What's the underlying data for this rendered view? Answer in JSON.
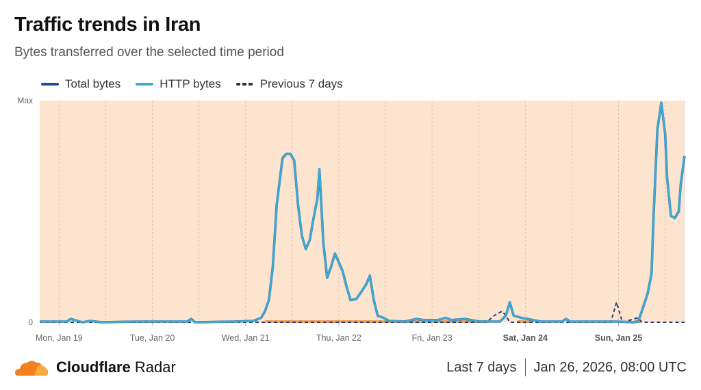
{
  "header": {
    "title": "Traffic trends in Iran",
    "subtitle": "Bytes transferred over the selected time period"
  },
  "footer": {
    "brand_bold": "Cloudflare",
    "brand_light": "Radar",
    "range": "Last 7 days",
    "timestamp": "Jan 26, 2026, 08:00 UTC"
  },
  "colors": {
    "total": "#1d4e9a",
    "http": "#3fa9d0",
    "previous": "#333333",
    "highlight": "#f0a060",
    "plot_bg": "#fde4cf"
  },
  "chart_data": {
    "type": "line",
    "title": "Traffic trends in Iran",
    "ylim": [
      0,
      1
    ],
    "y_ticks": [
      {
        "value": 0,
        "label": "0"
      },
      {
        "value": 1,
        "label": "Max"
      }
    ],
    "x_range": [
      "2026-01-18T19:00",
      "2026-01-25T17:00"
    ],
    "x_ticks": [
      {
        "t": "2026-01-19T00:00",
        "label": "Mon, Jan 19",
        "bold": false
      },
      {
        "t": "2026-01-20T00:00",
        "label": "Tue, Jan 20",
        "bold": false
      },
      {
        "t": "2026-01-21T00:00",
        "label": "Wed, Jan 21",
        "bold": false
      },
      {
        "t": "2026-01-22T00:00",
        "label": "Thu, Jan 22",
        "bold": false
      },
      {
        "t": "2026-01-23T00:00",
        "label": "Fri, Jan 23",
        "bold": false
      },
      {
        "t": "2026-01-24T00:00",
        "label": "Sat, Jan 24",
        "bold": true
      },
      {
        "t": "2026-01-25T00:00",
        "label": "Sun, Jan 25",
        "bold": true
      }
    ],
    "grid": "vertical dashed every 12h",
    "legend": "top-left",
    "series": [
      {
        "name": "Total bytes",
        "style": "solid",
        "color": "#1d4e9a",
        "points": [
          [
            "2026-01-18T19:00",
            0.003
          ],
          [
            "2026-01-19T02:00",
            0.003
          ],
          [
            "2026-01-19T03:00",
            0.015
          ],
          [
            "2026-01-19T04:00",
            0.01
          ],
          [
            "2026-01-19T06:00",
            0.0
          ],
          [
            "2026-01-19T08:00",
            0.006
          ],
          [
            "2026-01-19T11:00",
            0.0
          ],
          [
            "2026-01-19T20:00",
            0.003
          ],
          [
            "2026-01-20T09:00",
            0.003
          ],
          [
            "2026-01-20T10:00",
            0.015
          ],
          [
            "2026-01-20T11:00",
            0.0
          ],
          [
            "2026-01-20T21:00",
            0.003
          ],
          [
            "2026-01-21T02:00",
            0.006
          ],
          [
            "2026-01-21T04:00",
            0.02
          ],
          [
            "2026-01-21T05:00",
            0.05
          ],
          [
            "2026-01-21T06:00",
            0.1
          ],
          [
            "2026-01-21T07:00",
            0.25
          ],
          [
            "2026-01-21T08:00",
            0.53
          ],
          [
            "2026-01-21T09:30",
            0.74
          ],
          [
            "2026-01-21T10:30",
            0.76
          ],
          [
            "2026-01-21T11:30",
            0.76
          ],
          [
            "2026-01-21T12:30",
            0.73
          ],
          [
            "2026-01-21T13:30",
            0.53
          ],
          [
            "2026-01-21T14:30",
            0.39
          ],
          [
            "2026-01-21T15:30",
            0.33
          ],
          [
            "2026-01-21T16:30",
            0.37
          ],
          [
            "2026-01-21T17:30",
            0.47
          ],
          [
            "2026-01-21T18:30",
            0.56
          ],
          [
            "2026-01-21T19:00",
            0.69
          ],
          [
            "2026-01-21T20:00",
            0.36
          ],
          [
            "2026-01-21T21:00",
            0.2
          ],
          [
            "2026-01-21T22:00",
            0.25
          ],
          [
            "2026-01-21T23:00",
            0.31
          ],
          [
            "2026-01-22T00:00",
            0.27
          ],
          [
            "2026-01-22T01:00",
            0.23
          ],
          [
            "2026-01-22T02:00",
            0.16
          ],
          [
            "2026-01-22T03:00",
            0.1
          ],
          [
            "2026-01-22T04:30",
            0.105
          ],
          [
            "2026-01-22T05:30",
            0.13
          ],
          [
            "2026-01-22T07:00",
            0.17
          ],
          [
            "2026-01-22T08:00",
            0.21
          ],
          [
            "2026-01-22T09:00",
            0.1
          ],
          [
            "2026-01-22T10:00",
            0.03
          ],
          [
            "2026-01-22T11:30",
            0.02
          ],
          [
            "2026-01-22T13:00",
            0.006
          ],
          [
            "2026-01-22T17:00",
            0.003
          ],
          [
            "2026-01-22T20:00",
            0.015
          ],
          [
            "2026-01-22T22:00",
            0.01
          ],
          [
            "2026-01-23T01:30",
            0.01
          ],
          [
            "2026-01-23T03:30",
            0.02
          ],
          [
            "2026-01-23T05:00",
            0.01
          ],
          [
            "2026-01-23T08:30",
            0.015
          ],
          [
            "2026-01-23T12:00",
            0.003
          ],
          [
            "2026-01-23T17:30",
            0.003
          ],
          [
            "2026-01-23T19:00",
            0.03
          ],
          [
            "2026-01-23T20:00",
            0.09
          ],
          [
            "2026-01-23T21:00",
            0.03
          ],
          [
            "2026-01-23T23:00",
            0.02
          ],
          [
            "2026-01-24T04:00",
            0.003
          ],
          [
            "2026-01-24T09:30",
            0.003
          ],
          [
            "2026-01-24T10:30",
            0.015
          ],
          [
            "2026-01-24T11:30",
            0.003
          ],
          [
            "2026-01-24T23:30",
            0.003
          ],
          [
            "2026-01-25T04:00",
            0.0
          ],
          [
            "2026-01-25T05:00",
            0.003
          ],
          [
            "2026-01-25T06:00",
            0.05
          ],
          [
            "2026-01-25T07:30",
            0.13
          ],
          [
            "2026-01-25T08:30",
            0.22
          ],
          [
            "2026-01-25T09:00",
            0.47
          ],
          [
            "2026-01-25T10:00",
            0.87
          ],
          [
            "2026-01-25T11:00",
            0.99
          ],
          [
            "2026-01-25T12:00",
            0.85
          ],
          [
            "2026-01-25T12:30",
            0.65
          ],
          [
            "2026-01-25T13:30",
            0.48
          ],
          [
            "2026-01-25T14:30",
            0.47
          ],
          [
            "2026-01-25T15:30",
            0.5
          ],
          [
            "2026-01-25T16:00",
            0.62
          ],
          [
            "2026-01-25T17:00",
            0.75
          ]
        ]
      },
      {
        "name": "HTTP bytes",
        "style": "solid",
        "color": "#3fa9d0",
        "points": [
          [
            "2026-01-18T19:00",
            0.003
          ],
          [
            "2026-01-19T02:00",
            0.003
          ],
          [
            "2026-01-19T03:00",
            0.015
          ],
          [
            "2026-01-19T04:00",
            0.01
          ],
          [
            "2026-01-19T06:00",
            0.0
          ],
          [
            "2026-01-19T08:00",
            0.006
          ],
          [
            "2026-01-19T11:00",
            0.0
          ],
          [
            "2026-01-19T20:00",
            0.003
          ],
          [
            "2026-01-20T09:00",
            0.003
          ],
          [
            "2026-01-20T10:00",
            0.015
          ],
          [
            "2026-01-20T11:00",
            0.0
          ],
          [
            "2026-01-20T21:00",
            0.003
          ],
          [
            "2026-01-21T02:00",
            0.006
          ],
          [
            "2026-01-21T04:00",
            0.02
          ],
          [
            "2026-01-21T05:00",
            0.05
          ],
          [
            "2026-01-21T06:00",
            0.1
          ],
          [
            "2026-01-21T07:00",
            0.25
          ],
          [
            "2026-01-21T08:00",
            0.53
          ],
          [
            "2026-01-21T09:30",
            0.74
          ],
          [
            "2026-01-21T10:30",
            0.76
          ],
          [
            "2026-01-21T11:30",
            0.76
          ],
          [
            "2026-01-21T12:30",
            0.73
          ],
          [
            "2026-01-21T13:30",
            0.53
          ],
          [
            "2026-01-21T14:30",
            0.39
          ],
          [
            "2026-01-21T15:30",
            0.33
          ],
          [
            "2026-01-21T16:30",
            0.37
          ],
          [
            "2026-01-21T17:30",
            0.47
          ],
          [
            "2026-01-21T18:30",
            0.56
          ],
          [
            "2026-01-21T19:00",
            0.69
          ],
          [
            "2026-01-21T20:00",
            0.36
          ],
          [
            "2026-01-21T21:00",
            0.2
          ],
          [
            "2026-01-21T22:00",
            0.25
          ],
          [
            "2026-01-21T23:00",
            0.31
          ],
          [
            "2026-01-22T00:00",
            0.27
          ],
          [
            "2026-01-22T01:00",
            0.23
          ],
          [
            "2026-01-22T02:00",
            0.16
          ],
          [
            "2026-01-22T03:00",
            0.1
          ],
          [
            "2026-01-22T04:30",
            0.105
          ],
          [
            "2026-01-22T05:30",
            0.13
          ],
          [
            "2026-01-22T07:00",
            0.17
          ],
          [
            "2026-01-22T08:00",
            0.21
          ],
          [
            "2026-01-22T09:00",
            0.1
          ],
          [
            "2026-01-22T10:00",
            0.03
          ],
          [
            "2026-01-22T11:30",
            0.02
          ],
          [
            "2026-01-22T13:00",
            0.006
          ],
          [
            "2026-01-22T17:00",
            0.003
          ],
          [
            "2026-01-22T20:00",
            0.015
          ],
          [
            "2026-01-22T22:00",
            0.01
          ],
          [
            "2026-01-23T01:30",
            0.01
          ],
          [
            "2026-01-23T03:30",
            0.02
          ],
          [
            "2026-01-23T05:00",
            0.01
          ],
          [
            "2026-01-23T08:30",
            0.015
          ],
          [
            "2026-01-23T12:00",
            0.003
          ],
          [
            "2026-01-23T17:30",
            0.003
          ],
          [
            "2026-01-23T19:00",
            0.03
          ],
          [
            "2026-01-23T20:00",
            0.09
          ],
          [
            "2026-01-23T21:00",
            0.03
          ],
          [
            "2026-01-23T23:00",
            0.02
          ],
          [
            "2026-01-24T04:00",
            0.003
          ],
          [
            "2026-01-24T09:30",
            0.003
          ],
          [
            "2026-01-24T10:30",
            0.015
          ],
          [
            "2026-01-24T11:30",
            0.003
          ],
          [
            "2026-01-24T23:30",
            0.003
          ],
          [
            "2026-01-25T04:00",
            0.0
          ],
          [
            "2026-01-25T05:00",
            0.003
          ],
          [
            "2026-01-25T06:00",
            0.05
          ],
          [
            "2026-01-25T07:30",
            0.13
          ],
          [
            "2026-01-25T08:30",
            0.22
          ],
          [
            "2026-01-25T09:00",
            0.47
          ],
          [
            "2026-01-25T10:00",
            0.87
          ],
          [
            "2026-01-25T11:00",
            0.99
          ],
          [
            "2026-01-25T12:00",
            0.85
          ],
          [
            "2026-01-25T12:30",
            0.65
          ],
          [
            "2026-01-25T13:30",
            0.48
          ],
          [
            "2026-01-25T14:30",
            0.47
          ],
          [
            "2026-01-25T15:30",
            0.5
          ],
          [
            "2026-01-25T16:00",
            0.62
          ],
          [
            "2026-01-25T17:00",
            0.75
          ]
        ]
      },
      {
        "name": "Previous 7 days",
        "style": "dashed",
        "color": "#1d3c78",
        "points": [
          [
            "2026-01-18T19:00",
            0.0
          ],
          [
            "2026-01-23T14:00",
            0.0
          ],
          [
            "2026-01-23T16:00",
            0.03
          ],
          [
            "2026-01-23T18:00",
            0.05
          ],
          [
            "2026-01-23T19:00",
            0.03
          ],
          [
            "2026-01-23T20:00",
            0.0
          ],
          [
            "2026-01-24T22:00",
            0.0
          ],
          [
            "2026-01-24T23:30",
            0.09
          ],
          [
            "2026-01-25T01:00",
            0.0
          ],
          [
            "2026-01-25T05:00",
            0.02
          ],
          [
            "2026-01-25T06:00",
            0.0
          ],
          [
            "2026-01-25T17:00",
            0.0
          ]
        ]
      }
    ],
    "highlights": [
      [
        "2026-01-21T05:00",
        "2026-01-23T14:00"
      ],
      [
        "2026-01-23T22:00",
        "2026-01-24T02:00"
      ],
      [
        "2026-01-25T04:00",
        "2026-01-25T06:00"
      ]
    ]
  }
}
